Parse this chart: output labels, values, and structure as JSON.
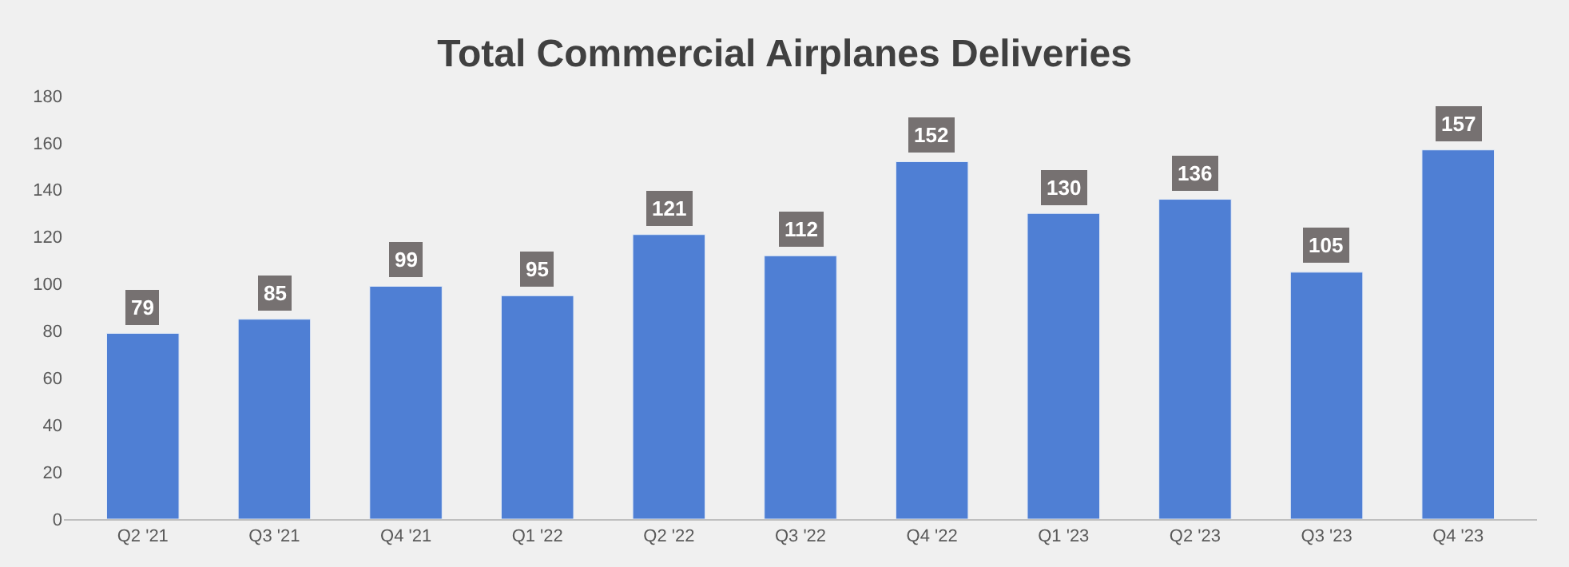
{
  "chart_data": {
    "type": "bar",
    "title": "Total Commercial Airplanes Deliveries",
    "categories": [
      "Q2 '21",
      "Q3 '21",
      "Q4 '21",
      "Q1 '22",
      "Q2 '22",
      "Q3 '22",
      "Q4 '22",
      "Q1 '23",
      "Q2 '23",
      "Q3 '23",
      "Q4 '23"
    ],
    "values": [
      79,
      85,
      99,
      95,
      121,
      112,
      152,
      130,
      136,
      105,
      157
    ],
    "color": "#4f7fd4",
    "ylim": [
      0,
      180
    ],
    "yticks": [
      0,
      20,
      40,
      60,
      80,
      100,
      120,
      140,
      160,
      180
    ],
    "data_labels": true
  }
}
